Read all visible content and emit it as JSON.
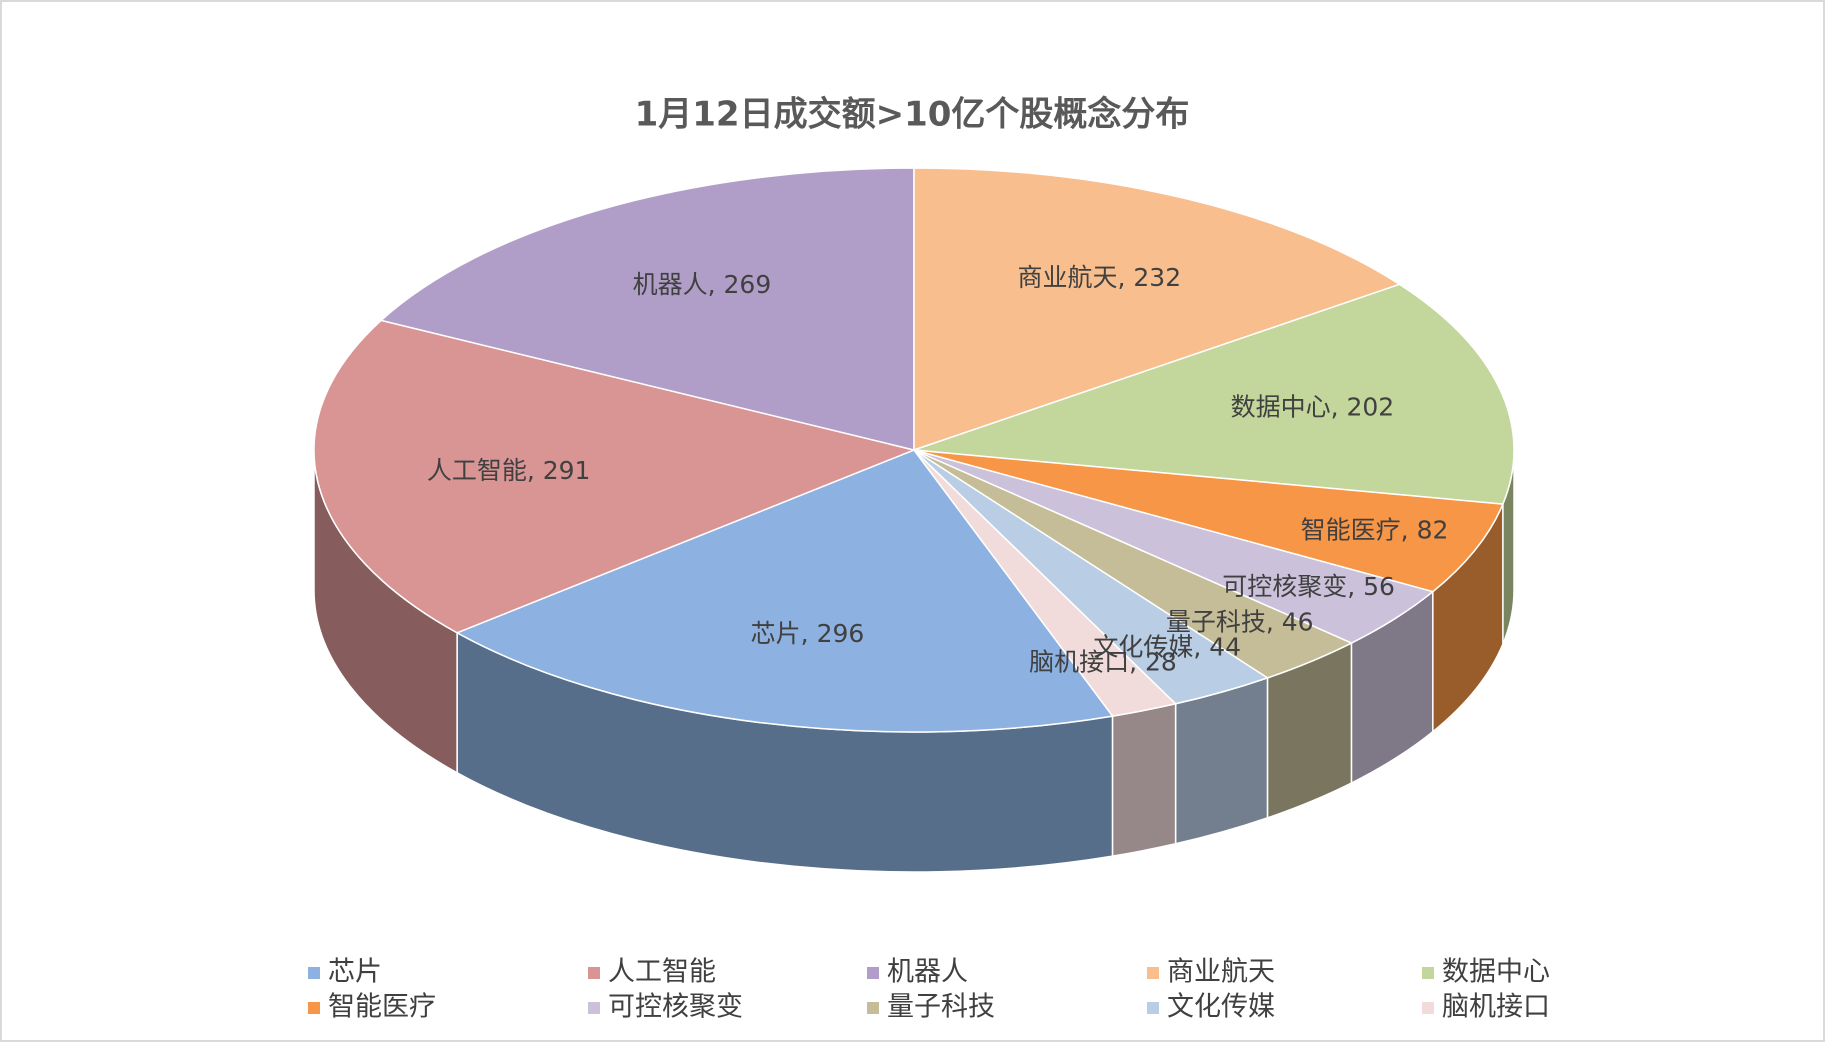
{
  "chart_data": {
    "type": "pie3d",
    "title": "1月12日成交额>10亿个股概念分布",
    "categories": [
      "芯片",
      "人工智能",
      "机器人",
      "商业航天",
      "数据中心",
      "智能医疗",
      "可控核聚变",
      "量子科技",
      "文化传媒",
      "脑机接口"
    ],
    "values": [
      296,
      291,
      269,
      232,
      202,
      82,
      56,
      46,
      44,
      28
    ],
    "colors": [
      "#8DB1E0",
      "#D99594",
      "#B09EC8",
      "#F8BE8E",
      "#C3D69B",
      "#F79646",
      "#CCC1DA",
      "#C4BD97",
      "#B9CDE5",
      "#F2DCDB"
    ],
    "data_label_separator": ", ",
    "legend": "bottom"
  }
}
